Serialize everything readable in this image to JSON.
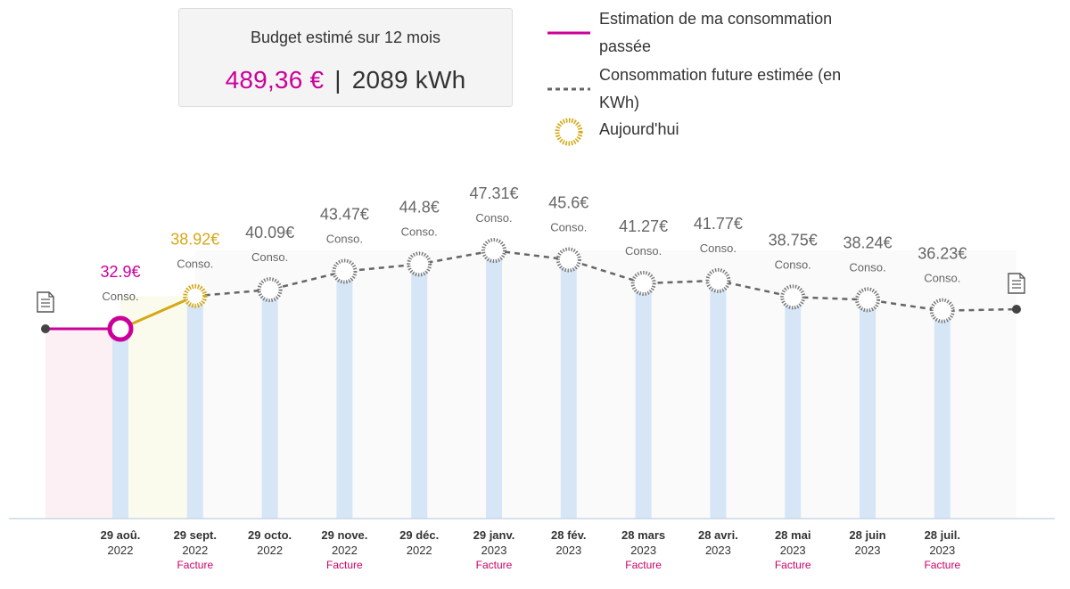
{
  "budget": {
    "title": "Budget estimé sur 12 mois",
    "euros": "489,36 €",
    "separator": "|",
    "kwh": "2089 kWh"
  },
  "legend": {
    "past": "Estimation de ma consommation passée",
    "future": "Consommation future estimée (en KWh)",
    "today": "Aujourd'hui"
  },
  "colors": {
    "past": "#cc0099",
    "today": "#d4a817",
    "future": "#666666",
    "bar": "#d6e6f7",
    "facture": "#cc0066"
  },
  "icons": {
    "start": "document-icon",
    "end": "document-icon"
  },
  "chart_data": {
    "type": "line",
    "point_label": "Conso.",
    "today_index": 1,
    "points": [
      {
        "date": "29 aoû.",
        "year": "2022",
        "facture": "",
        "value": 32.9,
        "label": "32.9€",
        "status": "past"
      },
      {
        "date": "29 sept.",
        "year": "2022",
        "facture": "Facture",
        "value": 38.92,
        "label": "38.92€",
        "status": "today"
      },
      {
        "date": "29 octo.",
        "year": "2022",
        "facture": "",
        "value": 40.09,
        "label": "40.09€",
        "status": "future"
      },
      {
        "date": "29 nove.",
        "year": "2022",
        "facture": "Facture",
        "value": 43.47,
        "label": "43.47€",
        "status": "future"
      },
      {
        "date": "29 déc.",
        "year": "2022",
        "facture": "",
        "value": 44.8,
        "label": "44.8€",
        "status": "future"
      },
      {
        "date": "29 janv.",
        "year": "2023",
        "facture": "Facture",
        "value": 47.31,
        "label": "47.31€",
        "status": "future"
      },
      {
        "date": "28 fév.",
        "year": "2023",
        "facture": "",
        "value": 45.6,
        "label": "45.6€",
        "status": "future"
      },
      {
        "date": "28 mars",
        "year": "2023",
        "facture": "Facture",
        "value": 41.27,
        "label": "41.27€",
        "status": "future"
      },
      {
        "date": "28 avri.",
        "year": "2023",
        "facture": "",
        "value": 41.77,
        "label": "41.77€",
        "status": "future"
      },
      {
        "date": "28 mai",
        "year": "2023",
        "facture": "Facture",
        "value": 38.75,
        "label": "38.75€",
        "status": "future"
      },
      {
        "date": "28 juin",
        "year": "2023",
        "facture": "",
        "value": 38.24,
        "label": "38.24€",
        "status": "future"
      },
      {
        "date": "28 juil.",
        "year": "2023",
        "facture": "Facture",
        "value": 36.23,
        "label": "36.23€",
        "status": "future"
      }
    ]
  }
}
